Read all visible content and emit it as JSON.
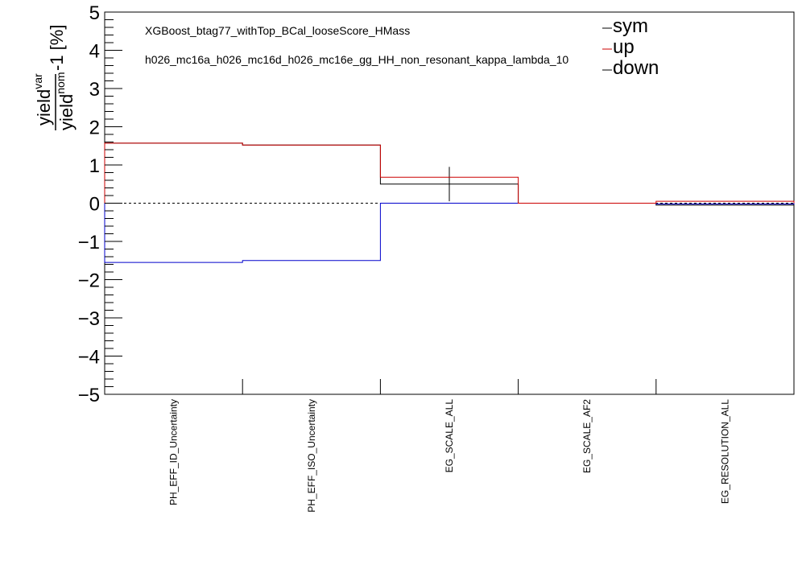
{
  "colors": {
    "sym": "#000000",
    "up": "#cc0000",
    "down": "#0000cc",
    "frame": "#000000",
    "background": "#ffffff"
  },
  "chart_data": {
    "type": "line",
    "title": "XGBoost_btag77_withTop_BCal_looseScore_HMass",
    "subtitle": "h026_mc16a_h026_mc16d_h026_mc16e_gg_HH_non_resonant_kappa_lambda_10",
    "ylabel": {
      "num": "yield",
      "num_sup": "var",
      "den": "yield",
      "den_sup": "nom",
      "suffix": "-1 [%]"
    },
    "ylim": [
      -5,
      5
    ],
    "yticks": [
      -5,
      -4,
      -3,
      -2,
      -1,
      0,
      1,
      2,
      3,
      4,
      5
    ],
    "ytick_labels": [
      "−5",
      "−4",
      "−3",
      "−2",
      "−1",
      "0",
      "1",
      "2",
      "3",
      "4",
      "5"
    ],
    "categories": [
      "PH_EFF_ID_Uncertainty",
      "PH_EFF_ISO_Uncertainty",
      "EG_SCALE_ALL",
      "EG_SCALE_AF2",
      "EG_RESOLUTION_ALL"
    ],
    "series": [
      {
        "name": "sym",
        "values": [
          1.57,
          1.52,
          0.5,
          0.0,
          -0.05
        ],
        "errors": [
          0.0,
          0.0,
          0.45,
          0.0,
          0.0
        ]
      },
      {
        "name": "up",
        "values": [
          1.57,
          1.52,
          0.68,
          0.0,
          0.05
        ]
      },
      {
        "name": "down",
        "values": [
          -1.55,
          -1.5,
          0.0,
          0.0,
          -0.02
        ]
      }
    ],
    "reference_line": 0,
    "legend_position": "top-right",
    "grid": false
  }
}
